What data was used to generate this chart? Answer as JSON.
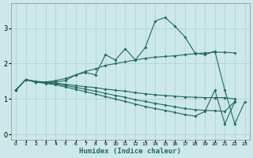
{
  "xlabel": "Humidex (Indice chaleur)",
  "background_color": "#cce8e8",
  "line_color": "#1e6b5e",
  "grid_color": "#b0d4d4",
  "xlim": [
    -0.5,
    23.5
  ],
  "ylim": [
    -0.15,
    3.7
  ],
  "yticks": [
    0,
    1,
    2,
    3
  ],
  "lines": [
    {
      "x": [
        0,
        1,
        2,
        3,
        4,
        5,
        6,
        7,
        8,
        9,
        10,
        11,
        12,
        13,
        14,
        15,
        16,
        17,
        18,
        19,
        20,
        21,
        22,
        23
      ],
      "y": [
        1.25,
        1.55,
        1.48,
        1.48,
        1.48,
        1.52,
        1.68,
        1.75,
        1.68,
        2.25,
        2.1,
        2.42,
        2.1,
        2.45,
        3.2,
        3.3,
        3.05,
        2.75,
        2.3,
        2.25,
        2.35,
        1.25,
        0.3,
        0.92
      ]
    },
    {
      "x": [
        0,
        1,
        2,
        3,
        4,
        5,
        6,
        7,
        8,
        9,
        10,
        11,
        12,
        13,
        14,
        15,
        16,
        17,
        18,
        19,
        20,
        21,
        22
      ],
      "y": [
        1.25,
        1.55,
        1.5,
        1.48,
        1.52,
        1.58,
        1.68,
        1.78,
        1.85,
        1.95,
        2.0,
        2.05,
        2.1,
        2.15,
        2.18,
        2.2,
        2.22,
        2.25,
        2.28,
        2.3,
        2.32,
        2.32,
        2.3
      ]
    },
    {
      "x": [
        0,
        1,
        2,
        3,
        4,
        5,
        6,
        7,
        8,
        9,
        10,
        11,
        12,
        13,
        14,
        15,
        16,
        17,
        18,
        19,
        20,
        21,
        22
      ],
      "y": [
        1.25,
        1.55,
        1.48,
        1.47,
        1.45,
        1.42,
        1.38,
        1.35,
        1.32,
        1.28,
        1.25,
        1.22,
        1.18,
        1.15,
        1.12,
        1.1,
        1.08,
        1.06,
        1.05,
        1.04,
        1.04,
        1.04,
        1.0
      ]
    },
    {
      "x": [
        0,
        1,
        2,
        3,
        4,
        5,
        6,
        7,
        8,
        9,
        10,
        11,
        12,
        13,
        14,
        15,
        16,
        17,
        18,
        19,
        20,
        21,
        22
      ],
      "y": [
        1.25,
        1.55,
        1.48,
        1.46,
        1.43,
        1.38,
        1.33,
        1.28,
        1.22,
        1.16,
        1.1,
        1.05,
        0.98,
        0.93,
        0.88,
        0.83,
        0.78,
        0.73,
        0.7,
        0.68,
        0.67,
        0.65,
        0.93
      ]
    },
    {
      "x": [
        0,
        1,
        2,
        3,
        4,
        5,
        6,
        7,
        8,
        9,
        10,
        11,
        12,
        13,
        14,
        15,
        16,
        17,
        18,
        19,
        20,
        21,
        22,
        23
      ],
      "y": [
        1.25,
        1.55,
        1.48,
        1.44,
        1.4,
        1.34,
        1.27,
        1.21,
        1.14,
        1.07,
        1.0,
        0.93,
        0.86,
        0.79,
        0.73,
        0.68,
        0.62,
        0.56,
        0.52,
        0.65,
        1.25,
        0.3,
        0.92,
        null
      ]
    }
  ]
}
